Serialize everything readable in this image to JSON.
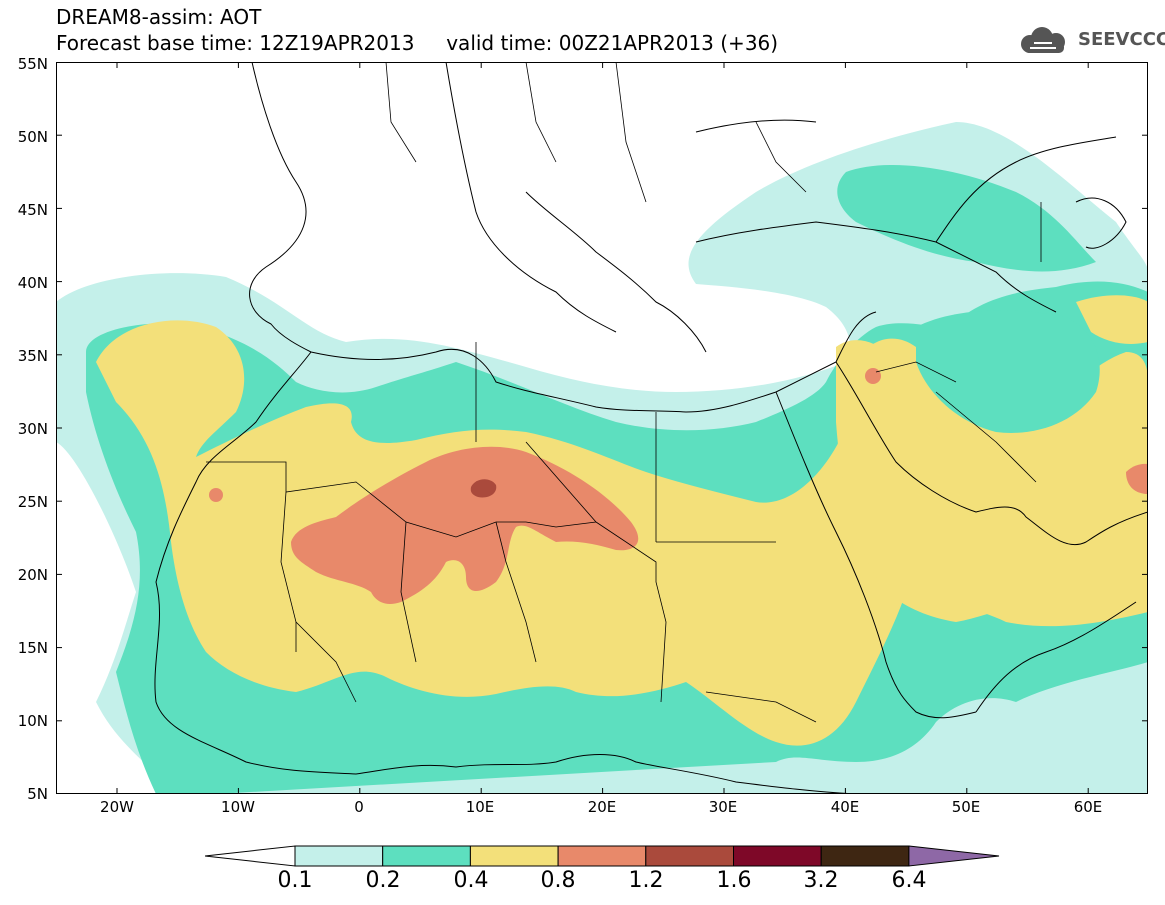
{
  "header": {
    "line1": "DREAM8-assim: AOT",
    "line2": "Forecast base time: 12Z19APR2013     valid time: 00Z21APR2013 (+36)"
  },
  "logo": {
    "text": "SEEVCCC",
    "icon": "cloud-icon"
  },
  "axes": {
    "y_labels": [
      "55N",
      "50N",
      "45N",
      "40N",
      "35N",
      "30N",
      "25N",
      "20N",
      "15N",
      "10N",
      "5N"
    ],
    "x_labels": [
      "20W",
      "10W",
      "0",
      "10E",
      "20E",
      "30E",
      "40E",
      "50E",
      "60E"
    ],
    "lon_range": [
      -25,
      65
    ],
    "lat_range": [
      5,
      55
    ]
  },
  "colorbar": {
    "labels": [
      "0.1",
      "0.2",
      "0.4",
      "0.8",
      "1.2",
      "1.6",
      "3.2",
      "6.4"
    ],
    "colors": [
      "#ffffff",
      "#c4f0ea",
      "#5ddfbf",
      "#f3e07a",
      "#e8896a",
      "#aa4a3c",
      "#7e0828",
      "#3e2612",
      "#8e68a6"
    ]
  }
}
